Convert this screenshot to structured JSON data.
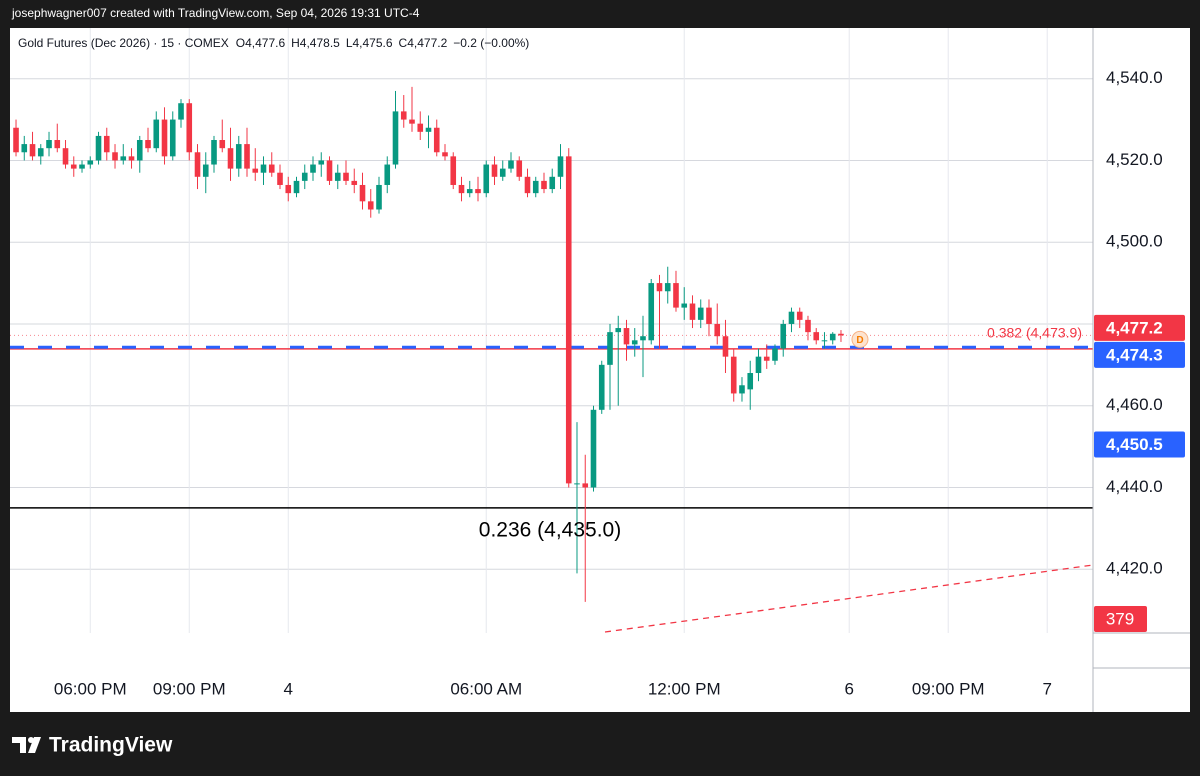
{
  "header": {
    "attribution": "josephwagner007 created with TradingView.com, Sep 04, 2026 19:31 UTC-4"
  },
  "footer": {
    "brand": "TradingView"
  },
  "chart_data": {
    "type": "candlestick",
    "legend": {
      "symbol": "Gold Futures (Dec 2026) · 15 · COMEX",
      "items": [
        "O4,477.6",
        "H4,478.5",
        "L4,475.6",
        "C4,477.2",
        "−0.2 (−0.00%)"
      ]
    },
    "up_color": "#089981",
    "down_color": "#f23645",
    "open": [
      4528,
      4522,
      4524,
      4521,
      4523,
      4525,
      4523,
      4519,
      4518,
      4519,
      4520,
      4526,
      4522,
      4520,
      4521,
      4520,
      4525,
      4523,
      4530,
      4521,
      4530,
      4534,
      4522,
      4516,
      4519,
      4525,
      4523,
      4518,
      4524,
      4518,
      4517,
      4519,
      4517,
      4514,
      4512,
      4515,
      4517,
      4519,
      4520,
      4515,
      4517,
      4515,
      4514,
      4510,
      4508,
      4514,
      4519,
      4532,
      4530,
      4529,
      4527,
      4528,
      4522,
      4521,
      4514,
      4512,
      4513,
      4512,
      4519,
      4516,
      4518,
      4520,
      4516,
      4512,
      4515,
      4513,
      4516,
      4521,
      4441,
      4441,
      4440,
      4459,
      4470,
      4478,
      4479,
      4475,
      4476,
      4476,
      4490,
      4488,
      4490,
      4484,
      4485,
      4481,
      4484,
      4480,
      4477,
      4472,
      4463,
      4464,
      4468,
      4472,
      4471,
      4474,
      4480,
      4483,
      4481,
      4478,
      4476,
      4476,
      4477.6
    ],
    "high": [
      4530,
      4526,
      4527,
      4524,
      4527,
      4529,
      4525,
      4521,
      4520,
      4521,
      4527,
      4528,
      4524,
      4524,
      4523,
      4526,
      4528,
      4532,
      4533,
      4532,
      4535,
      4535,
      4524,
      4522,
      4526,
      4530,
      4528,
      4526,
      4528,
      4523,
      4521,
      4522,
      4519,
      4516,
      4516,
      4519,
      4521,
      4522,
      4521,
      4519,
      4520,
      4518,
      4517,
      4513,
      4516,
      4521,
      4537,
      4536,
      4538,
      4532,
      4531,
      4530,
      4524,
      4522,
      4516,
      4515,
      4516,
      4520,
      4521,
      4520,
      4522,
      4521,
      4518,
      4516,
      4517,
      4518,
      4524,
      4523,
      4456,
      4448,
      4460,
      4471,
      4480,
      4482,
      4481,
      4479,
      4482,
      4491,
      4492,
      4494,
      4493,
      4489,
      4487,
      4486,
      4486,
      4485,
      4481,
      4474,
      4467,
      4471,
      4474,
      4475,
      4475,
      4481,
      4484,
      4484,
      4482,
      4479,
      4478,
      4478,
      4478.5
    ],
    "low": [
      4521,
      4520,
      4520,
      4519,
      4521,
      4522,
      4518,
      4516,
      4517,
      4518,
      4519,
      4520,
      4518,
      4519,
      4518,
      4517,
      4522,
      4522,
      4519,
      4520,
      4528,
      4520,
      4513,
      4512,
      4517,
      4522,
      4515,
      4516,
      4516,
      4515,
      4514,
      4516,
      4513,
      4510,
      4511,
      4513,
      4515,
      4516,
      4514,
      4513,
      4514,
      4512,
      4508,
      4506,
      4507,
      4512,
      4518,
      4528,
      4527,
      4525,
      4523,
      4521,
      4520,
      4513,
      4510,
      4511,
      4510,
      4511,
      4514,
      4515,
      4517,
      4515,
      4511,
      4511,
      4512,
      4512,
      4513,
      4440,
      4419,
      4412,
      4439,
      4458,
      4459,
      4460,
      4471,
      4472,
      4467,
      4475,
      4474,
      4485,
      4483,
      4481,
      4479,
      4479,
      4477,
      4475,
      4468,
      4461,
      4461,
      4459,
      4466,
      4469,
      4470,
      4472,
      4478,
      4479,
      4476,
      4475,
      4474,
      4475,
      4475.6
    ],
    "close": [
      4522,
      4524,
      4521,
      4523,
      4525,
      4523,
      4519,
      4518,
      4519,
      4520,
      4526,
      4522,
      4520,
      4521,
      4520,
      4525,
      4523,
      4530,
      4521,
      4530,
      4534,
      4522,
      4516,
      4519,
      4525,
      4523,
      4518,
      4524,
      4518,
      4517,
      4519,
      4517,
      4514,
      4512,
      4515,
      4517,
      4519,
      4520,
      4515,
      4517,
      4515,
      4514,
      4510,
      4508,
      4514,
      4519,
      4532,
      4530,
      4529,
      4527,
      4528,
      4522,
      4521,
      4514,
      4512,
      4513,
      4512,
      4519,
      4516,
      4518,
      4520,
      4516,
      4512,
      4515,
      4513,
      4516,
      4521,
      4441,
      4441,
      4440,
      4459,
      4470,
      4478,
      4479,
      4475,
      4476,
      4477,
      4490,
      4488,
      4490,
      4484,
      4485,
      4481,
      4484,
      4480,
      4477,
      4472,
      4463,
      4465,
      4468,
      4472,
      4471,
      4474,
      4480,
      4483,
      4481,
      4478,
      4476,
      4476,
      4477.6,
      4477.2
    ],
    "xlim": [
      -0.73,
      130.55
    ],
    "xticks": [
      {
        "value": 9,
        "label": "06:00 PM"
      },
      {
        "value": 21,
        "label": "09:00 PM"
      },
      {
        "value": 33,
        "label": "4"
      },
      {
        "value": 57,
        "label": "06:00 AM"
      },
      {
        "value": 81,
        "label": "12:00 PM"
      },
      {
        "value": 101,
        "label": "6"
      },
      {
        "value": 113,
        "label": "09:00 PM"
      },
      {
        "value": 125,
        "label": "7"
      }
    ],
    "ylim": [
      4404.4,
      4552.4
    ],
    "yticks": [
      {
        "value": 4420,
        "label": "4,420.0"
      },
      {
        "value": 4440,
        "label": "4,440.0"
      },
      {
        "value": 4460,
        "label": "4,460.0"
      },
      {
        "value": 4480,
        "label": "4,480.0"
      },
      {
        "value": 4500,
        "label": "4,500.0"
      },
      {
        "value": 4520,
        "label": "4,520.0"
      },
      {
        "value": 4540,
        "label": "4,540.0"
      }
    ],
    "grid": true,
    "fib_levels": [
      {
        "value": 4473.9,
        "label": "0.382 (4,473.9)",
        "color": "#f23645"
      },
      {
        "value": 4435.0,
        "label": "0.236 (4,435.0)",
        "color": "#000000"
      }
    ],
    "price_lines": [
      {
        "value": 4477.2,
        "label": "4,477.2",
        "color": "#f23645"
      },
      {
        "value": 4474.3,
        "label": "4,474.3",
        "color": "#2962ff"
      },
      {
        "value": 4450.5,
        "label": "4,450.5",
        "color": "#2962ff"
      }
    ],
    "trend_tag": {
      "label": "379",
      "color": "#f23645"
    },
    "event_marker": "D"
  }
}
